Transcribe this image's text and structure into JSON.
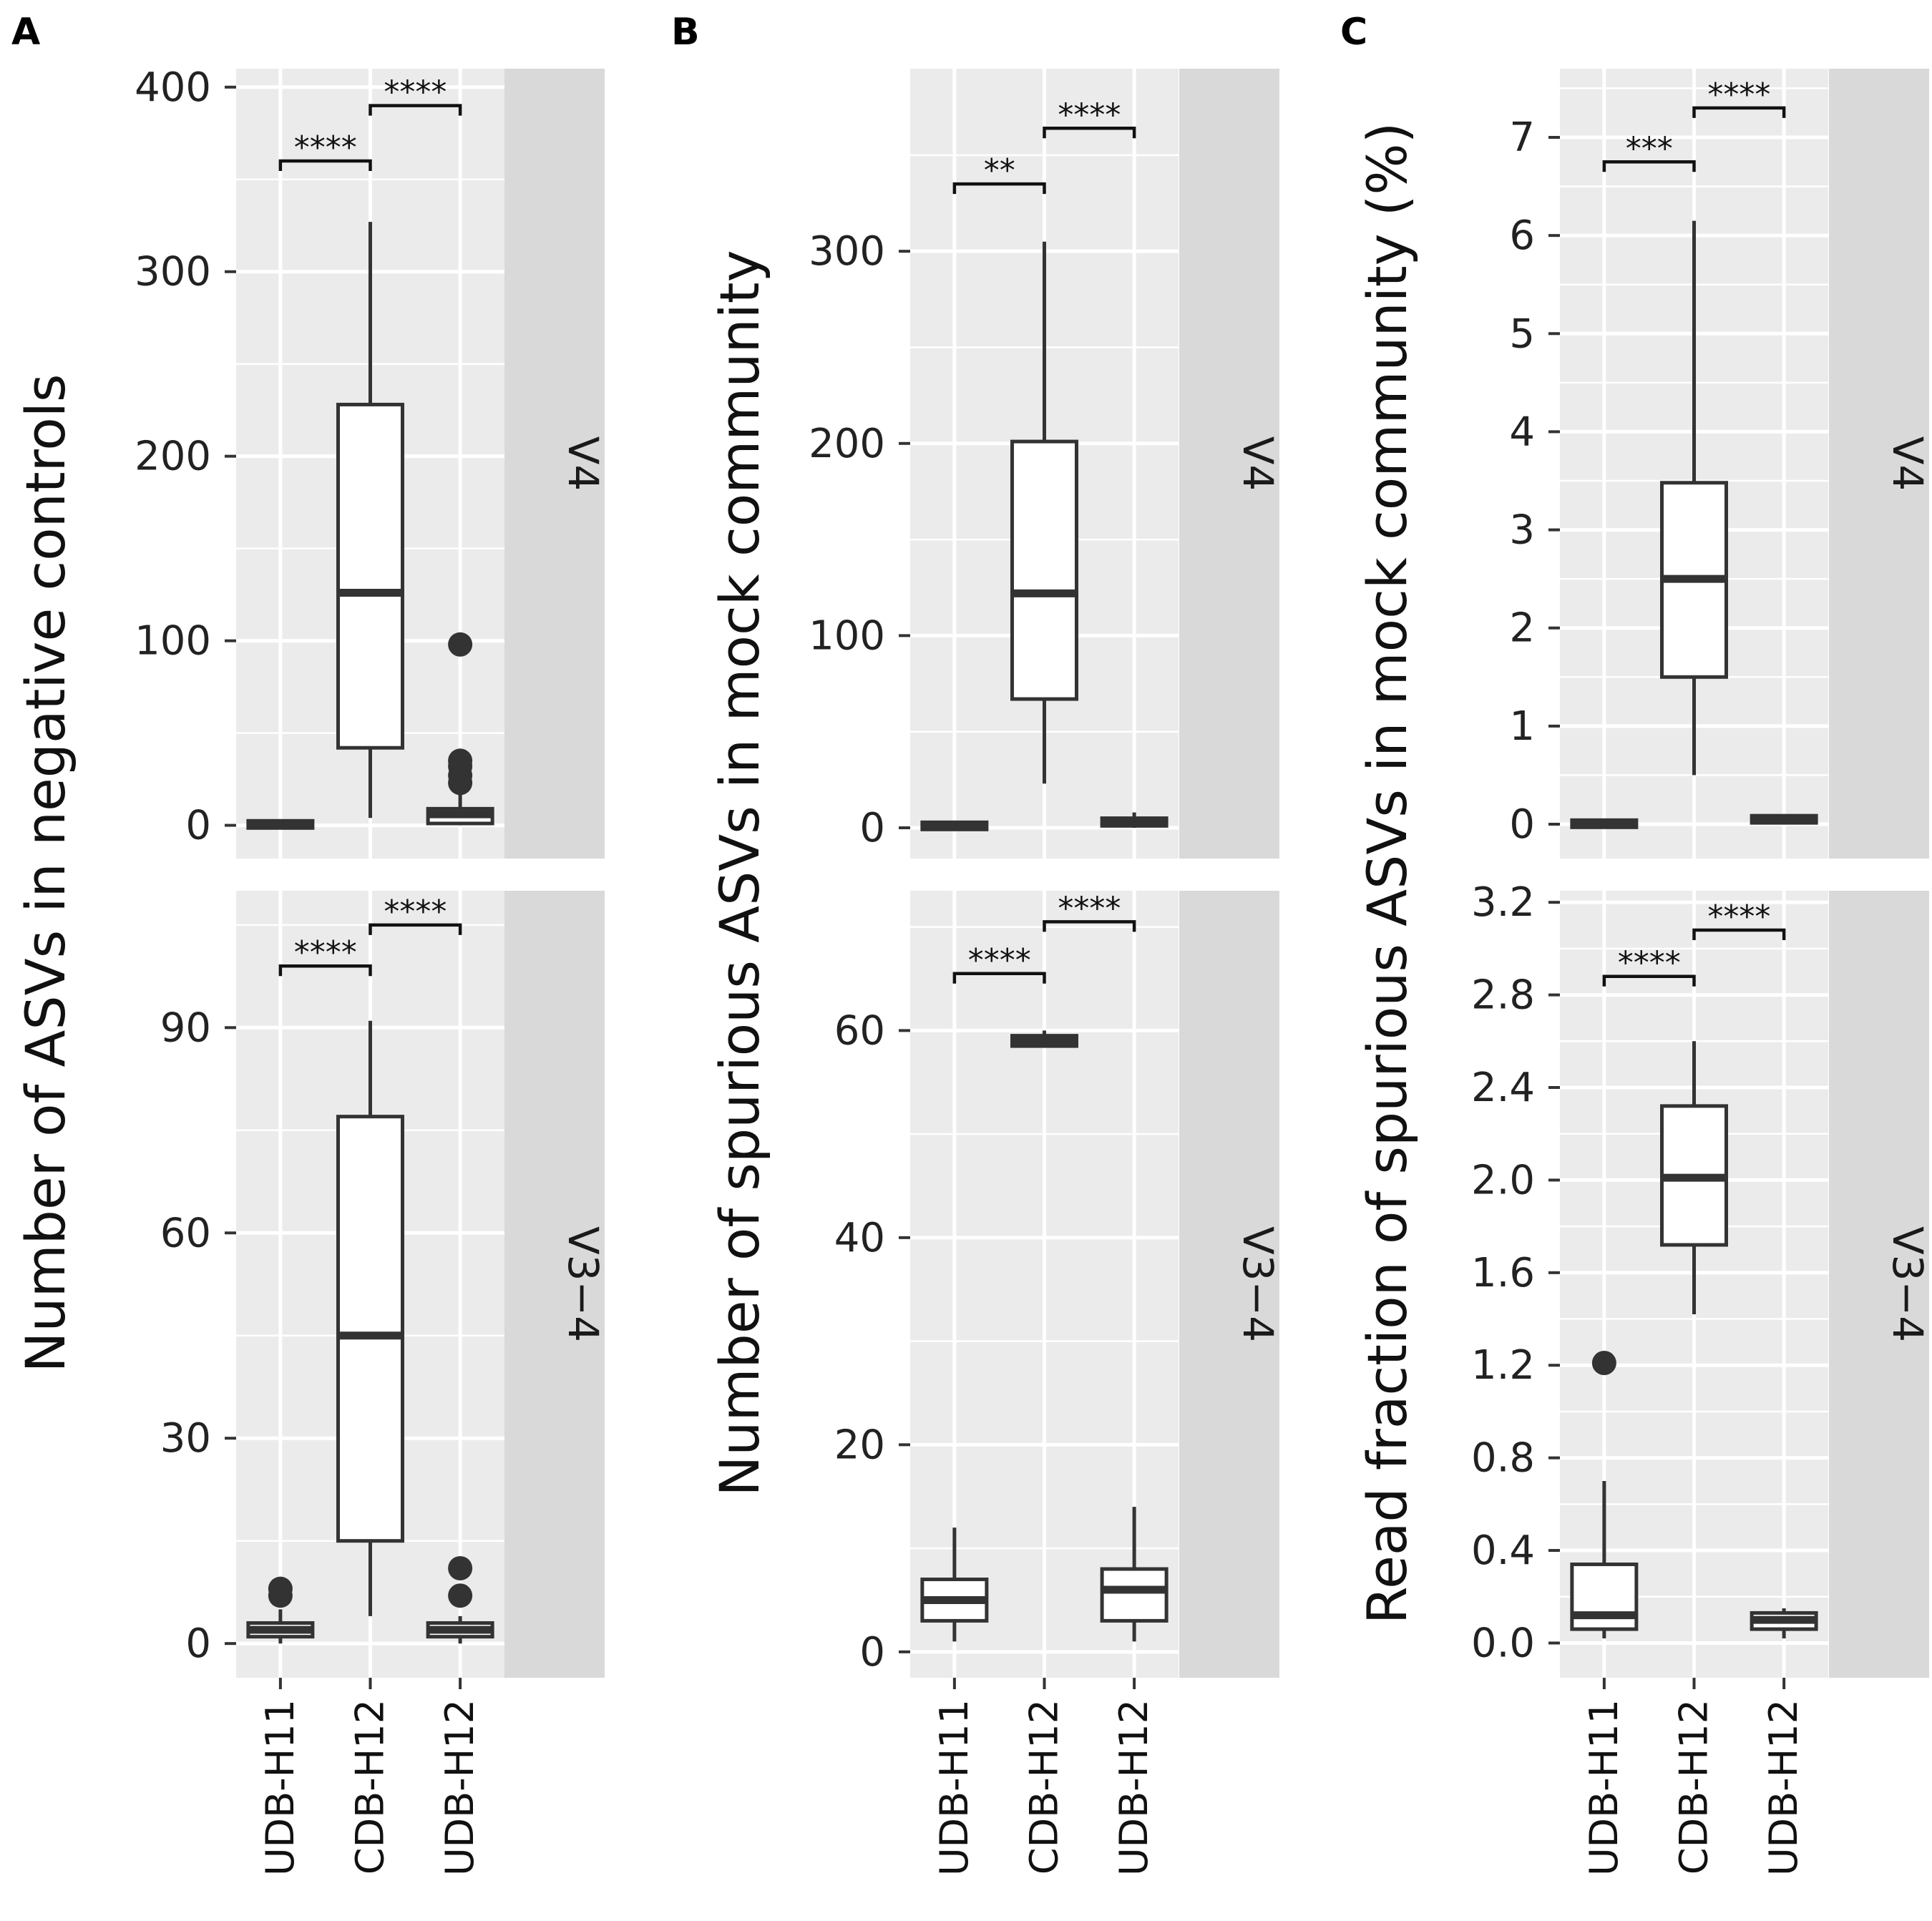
{
  "chart_data": {
    "type": "boxplot",
    "categories": [
      "UDB-H11",
      "CDB-H12",
      "UDB-H12"
    ],
    "facets": [
      "V4",
      "V3−4"
    ],
    "colors": {
      "panel_bg": "#ebebeb",
      "grid": "#ffffff",
      "strip_bg": "#d9d9d9",
      "box_stroke": "#333333",
      "box_fill": "#ffffff"
    },
    "panels": [
      {
        "letter": "A",
        "ylabel": "Number of ASVs in negative controls",
        "facets": [
          {
            "label": "V4",
            "ylim": [
              -18,
              410
            ],
            "ticks": [
              0,
              100,
              200,
              300,
              400
            ],
            "tick_labels": [
              "0",
              "100",
              "200",
              "300",
              "400"
            ],
            "minor": [
              50,
              150,
              250,
              350
            ],
            "sig_top": 400,
            "boxes": [
              {
                "category": "UDB-H11",
                "whisker_low": 0,
                "q1": 0,
                "median": 0,
                "q3": 1,
                "whisker_high": 3,
                "outliers": []
              },
              {
                "category": "CDB-H12",
                "whisker_low": 4,
                "q1": 42,
                "median": 126,
                "q3": 228,
                "whisker_high": 327,
                "outliers": []
              },
              {
                "category": "UDB-H12",
                "whisker_low": 0,
                "q1": 1,
                "median": 6,
                "q3": 9,
                "whisker_high": 20,
                "outliers": [
                  23,
                  27,
                  32,
                  35,
                  98
                ]
              }
            ],
            "comparisons": [
              {
                "from": "UDB-H11",
                "to": "CDB-H12",
                "y": 360,
                "label": "****"
              },
              {
                "from": "CDB-H12",
                "to": "UDB-H12",
                "y": 390,
                "label": "****"
              }
            ]
          },
          {
            "label": "V3−4",
            "ylim": [
              -5,
              110
            ],
            "ticks": [
              0,
              30,
              60,
              90
            ],
            "tick_labels": [
              "0",
              "30",
              "60",
              "90"
            ],
            "minor": [
              15,
              45,
              75,
              105
            ],
            "sig_top": 110,
            "boxes": [
              {
                "category": "UDB-H11",
                "whisker_low": 0,
                "q1": 1,
                "median": 2,
                "q3": 3,
                "whisker_high": 5,
                "outliers": [
                  7,
                  8
                ]
              },
              {
                "category": "CDB-H12",
                "whisker_low": 4,
                "q1": 15,
                "median": 45,
                "q3": 77,
                "whisker_high": 91,
                "outliers": []
              },
              {
                "category": "UDB-H12",
                "whisker_low": 0,
                "q1": 1,
                "median": 2,
                "q3": 3,
                "whisker_high": 4,
                "outliers": [
                  7,
                  11
                ]
              }
            ],
            "comparisons": [
              {
                "from": "UDB-H11",
                "to": "CDB-H12",
                "y": 99,
                "label": "****"
              },
              {
                "from": "CDB-H12",
                "to": "UDB-H12",
                "y": 105,
                "label": "****"
              }
            ]
          }
        ]
      },
      {
        "letter": "B",
        "ylabel": "Number of spurious ASVs in mock community",
        "facets": [
          {
            "label": "V4",
            "ylim": [
              -16,
              395
            ],
            "ticks": [
              0,
              100,
              200,
              300
            ],
            "tick_labels": [
              "0",
              "100",
              "200",
              "300"
            ],
            "minor": [
              50,
              150,
              250,
              350
            ],
            "sig_top": 395,
            "boxes": [
              {
                "category": "UDB-H11",
                "whisker_low": 0,
                "q1": 0,
                "median": 1,
                "q3": 2,
                "whisker_high": 3,
                "outliers": []
              },
              {
                "category": "CDB-H12",
                "whisker_low": 23,
                "q1": 67,
                "median": 122,
                "q3": 201,
                "whisker_high": 305,
                "outliers": []
              },
              {
                "category": "UDB-H12",
                "whisker_low": 0,
                "q1": 1,
                "median": 3,
                "q3": 5,
                "whisker_high": 8,
                "outliers": []
              }
            ],
            "comparisons": [
              {
                "from": "UDB-H11",
                "to": "CDB-H12",
                "y": 335,
                "label": "**"
              },
              {
                "from": "CDB-H12",
                "to": "UDB-H12",
                "y": 364,
                "label": "****"
              }
            ]
          },
          {
            "label": "V3−4",
            "ylim": [
              -2.5,
              73.5
            ],
            "ticks": [
              0,
              20,
              40,
              60
            ],
            "tick_labels": [
              "0",
              "20",
              "40",
              "60"
            ],
            "minor": [
              10,
              30,
              50,
              70
            ],
            "sig_top": 73.5,
            "boxes": [
              {
                "category": "UDB-H11",
                "whisker_low": 1,
                "q1": 3,
                "median": 5,
                "q3": 7,
                "whisker_high": 12,
                "outliers": []
              },
              {
                "category": "CDB-H12",
                "whisker_low": 58.5,
                "q1": 58.5,
                "median": 59,
                "q3": 59.5,
                "whisker_high": 60,
                "outliers": []
              },
              {
                "category": "UDB-H12",
                "whisker_low": 1,
                "q1": 3,
                "median": 6,
                "q3": 8,
                "whisker_high": 14,
                "outliers": []
              }
            ],
            "comparisons": [
              {
                "from": "UDB-H11",
                "to": "CDB-H12",
                "y": 65.5,
                "label": "****"
              },
              {
                "from": "CDB-H12",
                "to": "UDB-H12",
                "y": 70.5,
                "label": "****"
              }
            ]
          }
        ]
      },
      {
        "letter": "C",
        "ylabel": "Read fraction of spurious ASVs in mock community (%)",
        "facets": [
          {
            "label": "V4",
            "ylim": [
              -0.35,
              7.7
            ],
            "ticks": [
              0,
              1,
              2,
              3,
              4,
              5,
              6,
              7
            ],
            "tick_labels": [
              "0",
              "1",
              "2",
              "3",
              "4",
              "5",
              "6",
              "7"
            ],
            "minor": [
              0.5,
              1.5,
              2.5,
              3.5,
              4.5,
              5.5,
              6.5,
              7.5
            ],
            "sig_top": 7.7,
            "boxes": [
              {
                "category": "UDB-H11",
                "whisker_low": 0,
                "q1": 0,
                "median": 0,
                "q3": 0.01,
                "whisker_high": 0.02,
                "outliers": []
              },
              {
                "category": "CDB-H12",
                "whisker_low": 0.5,
                "q1": 1.5,
                "median": 2.5,
                "q3": 3.48,
                "whisker_high": 6.15,
                "outliers": []
              },
              {
                "category": "UDB-H12",
                "whisker_low": 0.02,
                "q1": 0.03,
                "median": 0.05,
                "q3": 0.07,
                "whisker_high": 0.08,
                "outliers": []
              }
            ],
            "comparisons": [
              {
                "from": "UDB-H11",
                "to": "CDB-H12",
                "y": 6.75,
                "label": "***"
              },
              {
                "from": "CDB-H12",
                "to": "UDB-H12",
                "y": 7.3,
                "label": "****"
              }
            ]
          },
          {
            "label": "V3−4",
            "ylim": [
              -0.15,
              3.25
            ],
            "ticks": [
              0,
              0.4,
              0.8,
              1.2,
              1.6,
              2.0,
              2.4,
              2.8,
              3.2
            ],
            "tick_labels": [
              "0.0",
              "0.4",
              "0.8",
              "1.2",
              "1.6",
              "2.0",
              "2.4",
              "2.8",
              "3.2"
            ],
            "minor": [
              0.2,
              0.6,
              1.0,
              1.4,
              1.8,
              2.2,
              2.6,
              3.0
            ],
            "sig_top": 3.25,
            "boxes": [
              {
                "category": "UDB-H11",
                "whisker_low": 0.02,
                "q1": 0.06,
                "median": 0.12,
                "q3": 0.34,
                "whisker_high": 0.7,
                "outliers": [
                  1.21
                ]
              },
              {
                "category": "CDB-H12",
                "whisker_low": 1.42,
                "q1": 1.72,
                "median": 2.01,
                "q3": 2.32,
                "whisker_high": 2.6,
                "outliers": []
              },
              {
                "category": "UDB-H12",
                "whisker_low": 0.02,
                "q1": 0.06,
                "median": 0.1,
                "q3": 0.13,
                "whisker_high": 0.15,
                "outliers": []
              }
            ],
            "comparisons": [
              {
                "from": "UDB-H11",
                "to": "CDB-H12",
                "y": 2.88,
                "label": "****"
              },
              {
                "from": "CDB-H12",
                "to": "UDB-H12",
                "y": 3.08,
                "label": "****"
              }
            ]
          }
        ]
      }
    ]
  }
}
